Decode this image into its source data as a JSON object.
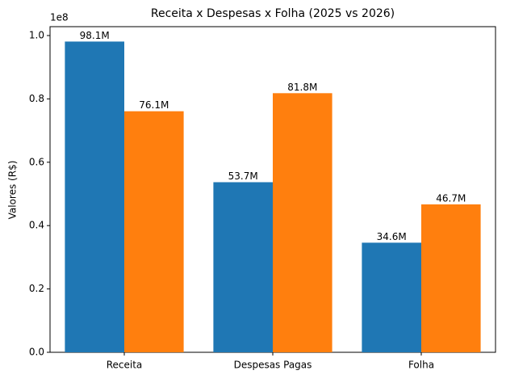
{
  "chart_data": {
    "type": "bar",
    "title": "Receita x Despesas x Folha (2025 vs 2026)",
    "y_label": "Valores (R$)",
    "y_offset_label": "1e8",
    "categories": [
      "Receita",
      "Despesas Pagas",
      "Folha"
    ],
    "series": [
      {
        "color": "#1f77b4",
        "values": [
          98100000,
          53700000,
          34600000
        ],
        "value_labels": [
          "98.1M",
          "53.7M",
          "34.6M"
        ]
      },
      {
        "color": "#ff7f0e",
        "values": [
          76100000,
          81800000,
          46700000
        ],
        "value_labels": [
          "76.1M",
          "81.8M",
          "46.7M"
        ]
      }
    ],
    "ylim": [
      0,
      102800000
    ],
    "yticks": [
      {
        "value": 0,
        "label": "0.0"
      },
      {
        "value": 20000000,
        "label": "0.2"
      },
      {
        "value": 40000000,
        "label": "0.4"
      },
      {
        "value": 60000000,
        "label": "0.6"
      },
      {
        "value": 80000000,
        "label": "0.8"
      },
      {
        "value": 100000000,
        "label": "1.0"
      }
    ],
    "grid": false
  }
}
